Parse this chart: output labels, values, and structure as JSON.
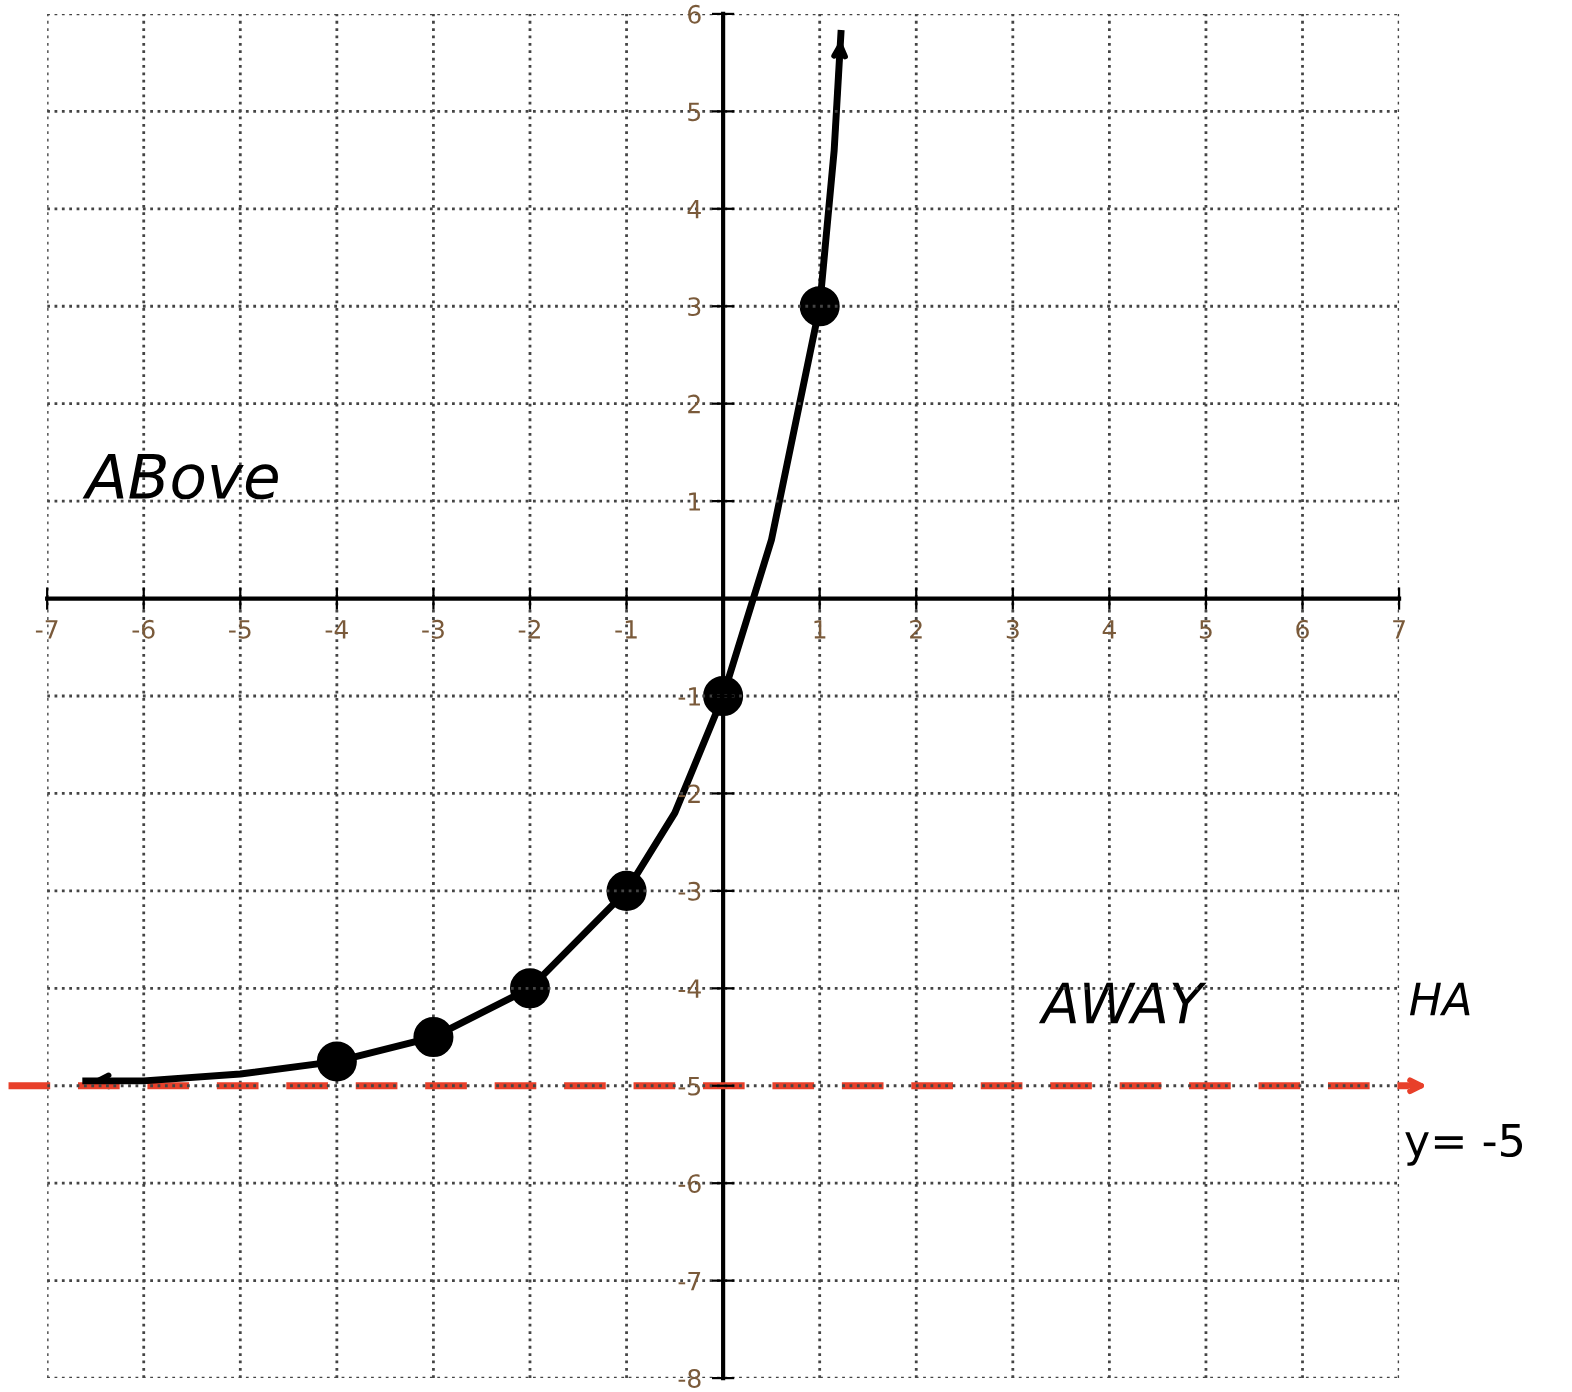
{
  "chart_data": {
    "type": "line",
    "series": [
      {
        "type": "line",
        "color": "#000000",
        "marker": "none",
        "x": [
          -6.6,
          -6,
          -5,
          -4,
          -3,
          -2,
          -1,
          -0.5,
          0,
          0.5,
          1,
          1.15,
          1.22
        ],
        "values": [
          -4.95,
          -4.95,
          -4.88,
          -4.75,
          -4.5,
          -4,
          -3,
          -2.2,
          -1,
          0.6,
          3,
          4.6,
          5.8
        ]
      },
      {
        "type": "scatter",
        "color": "#000000",
        "marker": "circle",
        "x": [
          -4,
          -3,
          -2,
          -1,
          0,
          1
        ],
        "values": [
          -4.75,
          -4.5,
          -4,
          -3,
          -1,
          3
        ]
      }
    ],
    "xlim": [
      -7,
      7
    ],
    "ylim": [
      -8,
      6
    ],
    "xticks": [
      -7,
      -6,
      -5,
      -4,
      -3,
      -2,
      -1,
      1,
      2,
      3,
      4,
      5,
      6,
      7
    ],
    "yticks": [
      -8,
      -7,
      -6,
      -5,
      -4,
      -3,
      -2,
      -1,
      1,
      2,
      3,
      4,
      5,
      6
    ],
    "grid": true,
    "ref_lines": [
      {
        "axis": "y",
        "value": -5,
        "label": "y= -5",
        "color": "#e8402a",
        "line_style": "dashed"
      }
    ],
    "annotations": [
      "ABove",
      "AWAY",
      "HA"
    ]
  }
}
